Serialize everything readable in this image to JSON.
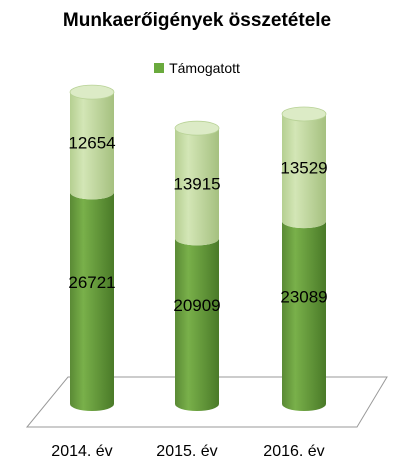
{
  "chart_data": {
    "type": "bar",
    "stacked": true,
    "title": "Munkaerőigények összetétele",
    "categories": [
      "2014. év",
      "2015. év",
      "2016. év"
    ],
    "series": [
      {
        "name": "Támogatott",
        "values": [
          26721,
          20909,
          23089
        ],
        "color": "#5f9a3a"
      },
      {
        "values": [
          12654,
          13915,
          13529
        ],
        "color": "#c3dca0"
      }
    ],
    "ylim": [
      0,
      42000
    ],
    "legend_position": "top",
    "grid": false
  },
  "legend_color": "#6aaa3d"
}
